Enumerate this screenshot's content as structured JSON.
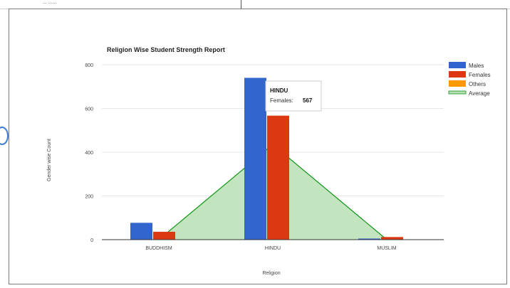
{
  "page": {
    "crumb_text": "... ......"
  },
  "chart_data": {
    "type": "bar",
    "title": "Religion Wise Student Strength Report",
    "xlabel": "Religion",
    "ylabel": "Gender wise Count",
    "categories": [
      "BUDDHISM",
      "HINDU",
      "MUSLIM"
    ],
    "ylim": [
      0,
      800
    ],
    "yticks": [
      "0",
      "200",
      "400",
      "600",
      "800"
    ],
    "grid": true,
    "legend_position": "right",
    "series": [
      {
        "name": "Males",
        "kind": "bar",
        "color": "#3366cc",
        "values": [
          77,
          740,
          5
        ]
      },
      {
        "name": "Females",
        "kind": "bar",
        "color": "#dc3912",
        "values": [
          36,
          567,
          12
        ]
      },
      {
        "name": "Others",
        "kind": "bar",
        "color": "#ff9900",
        "values": [
          0,
          0,
          0
        ]
      },
      {
        "name": "Average",
        "kind": "area",
        "color": "#109618",
        "values": [
          0,
          435,
          0
        ]
      }
    ],
    "tooltip": {
      "category": "HINDU",
      "series_label": "Females:",
      "value": "567"
    }
  }
}
